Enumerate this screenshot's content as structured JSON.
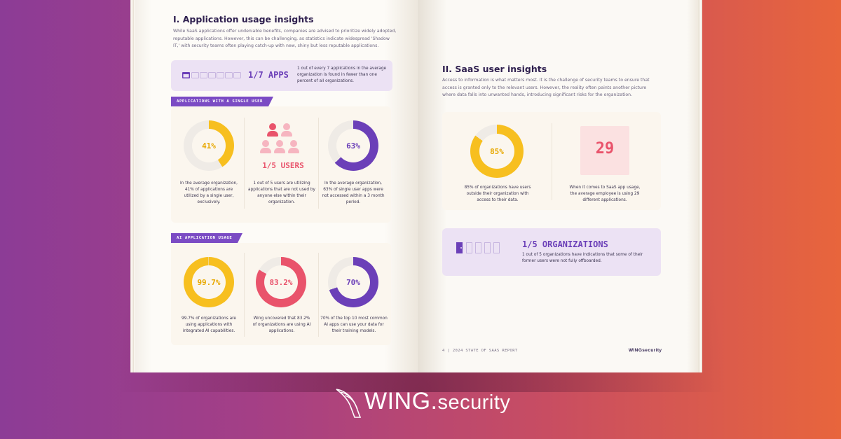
{
  "left_page": {
    "title": "I. Application usage insights",
    "intro": "While SaaS applications offer undeniable benefits, companies are advised to prioritize widely adopted, reputable applications. However, this can be challenging, as statistics indicate widespread 'Shadow IT,' with security teams often playing catch-up with new, shiny but less reputable applications.",
    "apps_banner": {
      "stat": "1/7 APPS",
      "text": "1 out of every 7 applications in the average organization is found in fewer than one percent of all organizations."
    },
    "single_user_section": {
      "tag": "APPLICATIONS WITH A SINGLE USER",
      "items": [
        {
          "value": "41%",
          "percent": 41,
          "color": "#f7bf1f",
          "caption": "In the average organization, 41% of applications are utilized by a single user, exclusively."
        },
        {
          "value": "1/5 USERS",
          "caption": "1 out of 5 users are utilizing applications that are not used by anyone else within their organization."
        },
        {
          "value": "63%",
          "percent": 63,
          "color": "#6b3fb8",
          "caption": "In the average organization, 63% of single user apps were not accessed within a 3 month period."
        }
      ]
    },
    "ai_section": {
      "tag": "AI APPLICATION USAGE",
      "items": [
        {
          "value": "99.7%",
          "percent": 99.7,
          "color": "#f7bf1f",
          "caption": "99.7% of organizations are using applications with integrated AI capabilities."
        },
        {
          "value": "83.2%",
          "percent": 83.2,
          "color": "#e9536b",
          "caption": "Wing uncovered that 83.2% of organizations are using AI applications."
        },
        {
          "value": "70%",
          "percent": 70,
          "color": "#6b3fb8",
          "caption": "70% of the top 10 most common AI apps can use your data for their training models."
        }
      ]
    }
  },
  "right_page": {
    "title": "II. SaaS user insights",
    "intro": "Access to information is what matters most. It is the challenge of security teams to ensure that access is granted only to the relevant users. However, the reality often paints another picture where data falls into unwanted hands, introducing significant risks for the organization.",
    "stats": [
      {
        "value": "85%",
        "percent": 85,
        "color": "#f7bf1f",
        "caption": "85% of organizations have users outside their organization with access to their data."
      },
      {
        "value": "29",
        "caption": "When it comes to SaaS app usage, the average employee is using 29 different applications."
      }
    ],
    "org_banner": {
      "stat": "1/5 ORGANIZATIONS",
      "text": "1 out of 5 organizations have indications that some of their former users were not fully offboarded."
    },
    "footer": "4 | 2024 STATE OF SAAS REPORT",
    "footer_logo": "WINGsecurity"
  },
  "brand": {
    "logo_main": "WING",
    "logo_dot": ".",
    "logo_suffix": "security"
  },
  "colors": {
    "yellow": "#f7bf1f",
    "purple": "#6b3fb8",
    "pink": "#e9536b",
    "navy": "#2e1f4e"
  }
}
